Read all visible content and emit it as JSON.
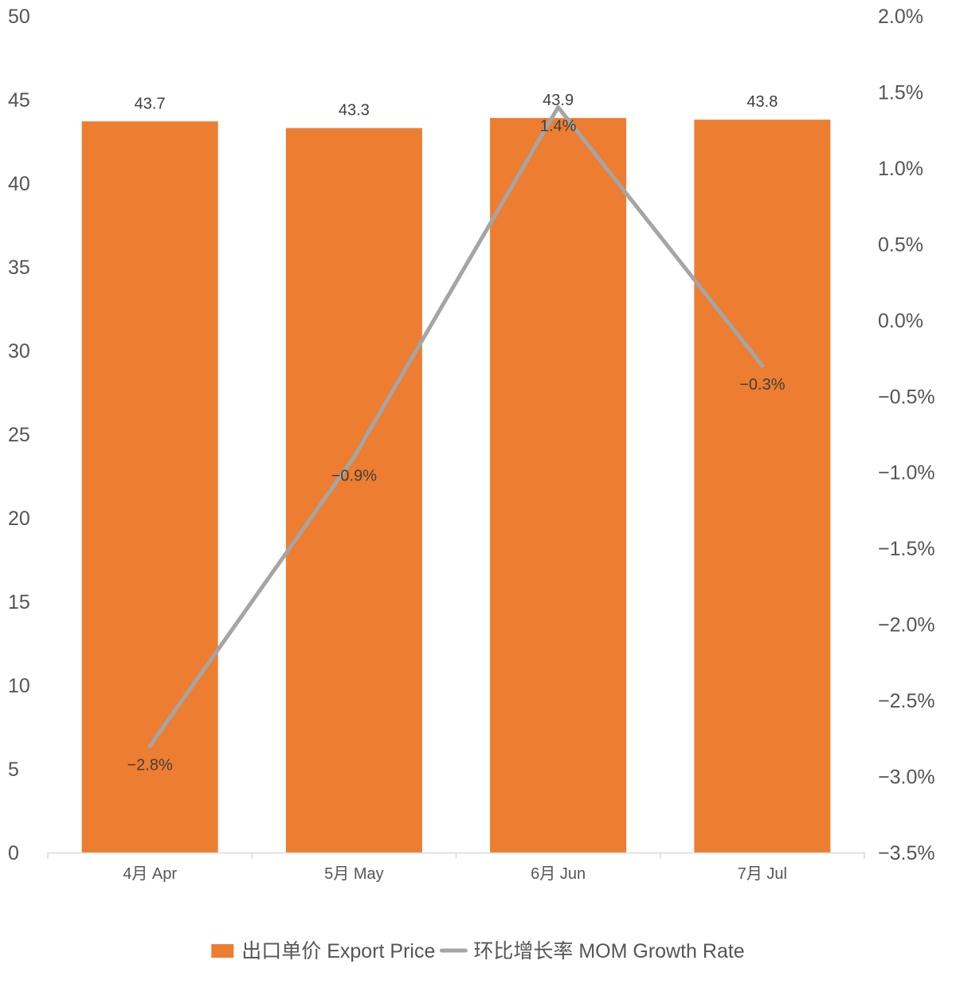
{
  "chart_data": {
    "type": "bar",
    "categories": [
      "4月 Apr",
      "5月 May",
      "6月 Jun",
      "7月 Jul"
    ],
    "series": [
      {
        "name": "出口单价 Export Price",
        "type": "bar",
        "axis": "left",
        "color": "#ED7D31",
        "values": [
          43.7,
          43.3,
          43.9,
          43.8
        ],
        "labels": [
          "43.7",
          "43.3",
          "43.9",
          "43.8"
        ]
      },
      {
        "name": "环比增长率 MOM Growth Rate",
        "type": "line",
        "axis": "right",
        "color": "#A5A5A5",
        "values": [
          -2.8,
          -0.9,
          1.4,
          -0.3
        ],
        "labels": [
          "−2.8%",
          "−0.9%",
          "1.4%",
          "−0.3%"
        ]
      }
    ],
    "y_left": {
      "lim": [
        0,
        50
      ],
      "ticks": [
        0,
        5,
        10,
        15,
        20,
        25,
        30,
        35,
        40,
        45,
        50
      ],
      "tick_labels": [
        "0",
        "5",
        "10",
        "15",
        "20",
        "25",
        "30",
        "35",
        "40",
        "45",
        "50"
      ]
    },
    "y_right": {
      "lim": [
        -3.5,
        2.0
      ],
      "ticks": [
        -3.5,
        -3.0,
        -2.5,
        -2.0,
        -1.5,
        -1.0,
        -0.5,
        0.0,
        0.5,
        1.0,
        1.5,
        2.0
      ],
      "tick_labels": [
        "−3.5%",
        "−3.0%",
        "−2.5%",
        "−2.0%",
        "−1.5%",
        "−1.0%",
        "−0.5%",
        "0.0%",
        "0.5%",
        "1.0%",
        "1.5%",
        "2.0%"
      ]
    },
    "grid": false,
    "legend_position": "bottom"
  }
}
